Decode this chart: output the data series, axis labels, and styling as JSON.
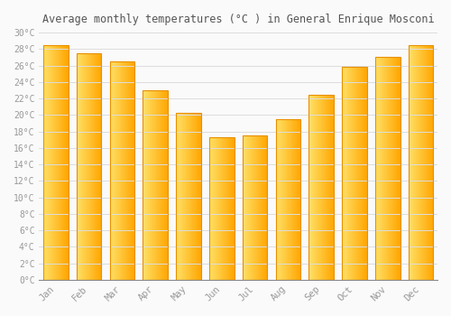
{
  "months": [
    "Jan",
    "Feb",
    "Mar",
    "Apr",
    "May",
    "Jun",
    "Jul",
    "Aug",
    "Sep",
    "Oct",
    "Nov",
    "Dec"
  ],
  "values": [
    28.5,
    27.5,
    26.5,
    23.0,
    20.3,
    17.3,
    17.5,
    19.5,
    22.5,
    25.8,
    27.0,
    28.5
  ],
  "bar_color_left": "#FFE066",
  "bar_color_right": "#FFA500",
  "bar_color_edge": "#E89000",
  "title": "Average monthly temperatures (°C ) in General Enrique Mosconi",
  "ylim": [
    0,
    30
  ],
  "ytick_step": 2,
  "background_color": "#FAFAFA",
  "grid_color": "#DDDDDD",
  "text_color": "#999999",
  "title_color": "#555555",
  "font_family": "monospace",
  "bar_width": 0.75,
  "n_gradient_steps": 50
}
